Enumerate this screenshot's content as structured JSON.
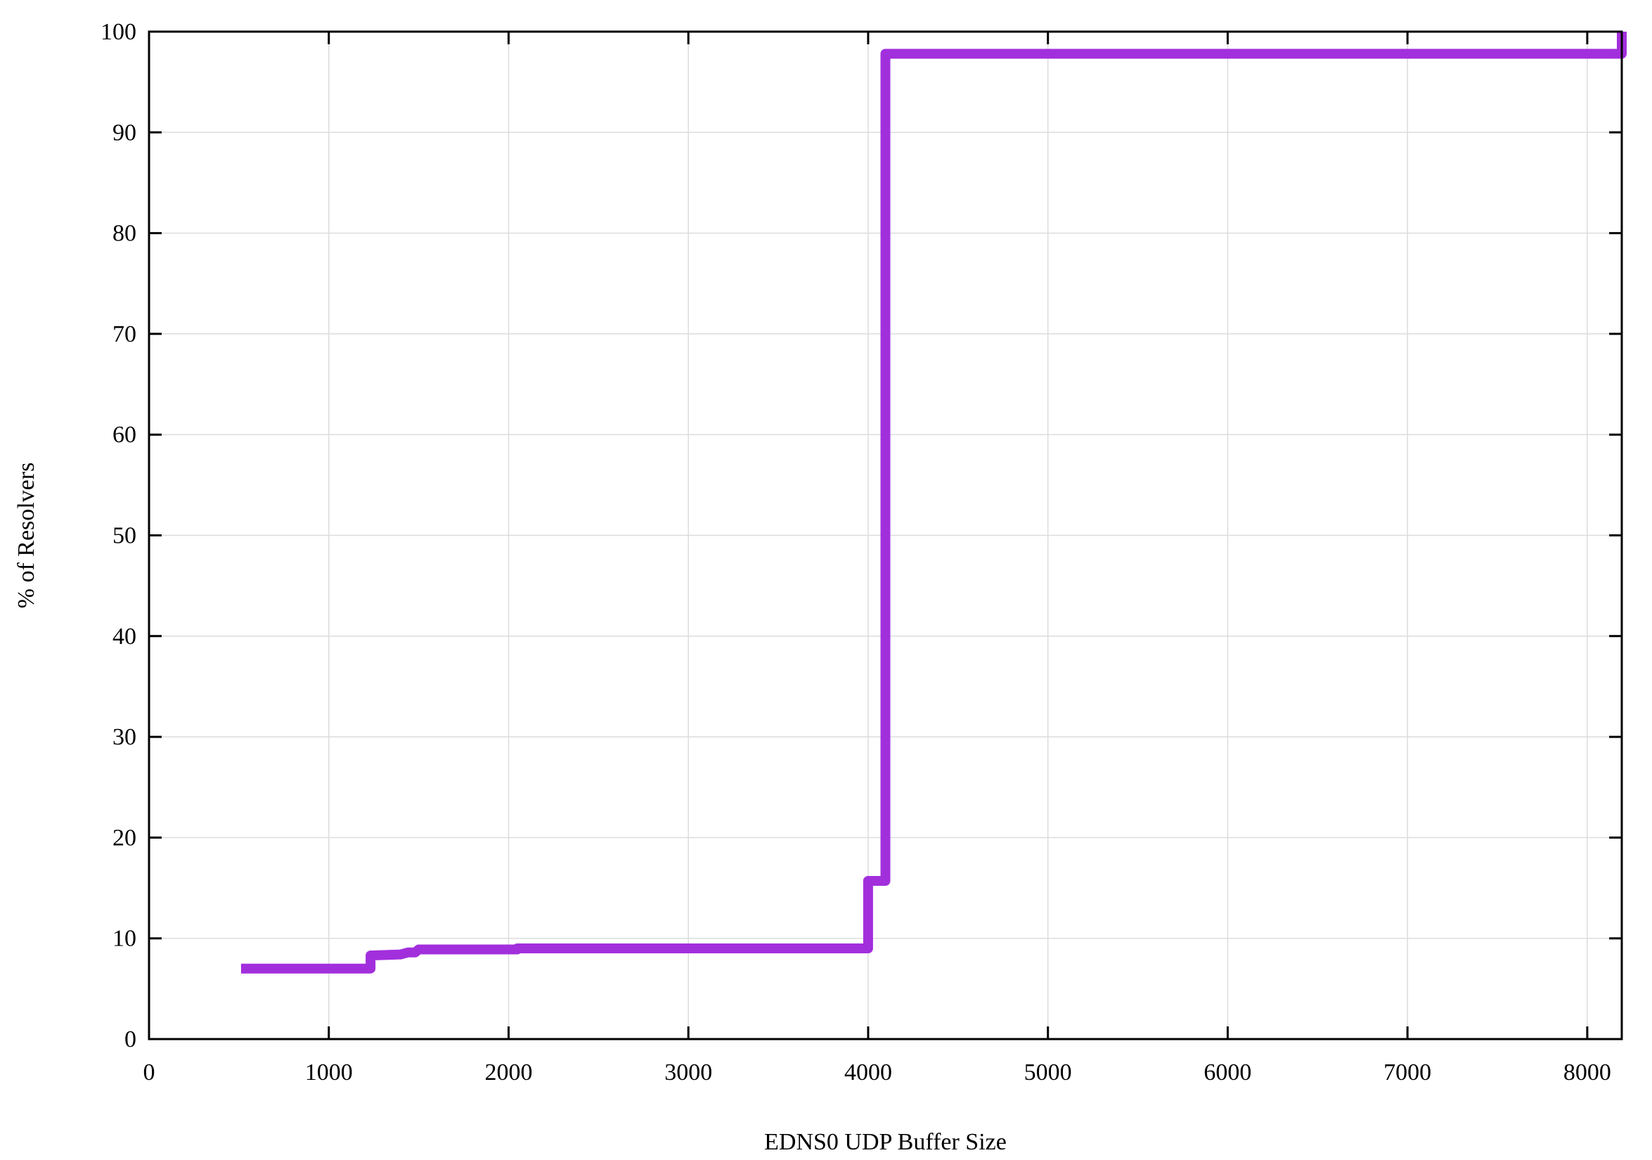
{
  "chart_data": {
    "type": "line",
    "title": "",
    "xlabel": "EDNS0 UDP Buffer Size",
    "ylabel": "% of Resolvers",
    "xlim": [
      0,
      8192
    ],
    "ylim": [
      0,
      100
    ],
    "xticks": [
      0,
      1000,
      2000,
      3000,
      4000,
      5000,
      6000,
      7000,
      8000
    ],
    "yticks": [
      0,
      10,
      20,
      30,
      40,
      50,
      60,
      70,
      80,
      90,
      100
    ],
    "grid": true,
    "step": true,
    "series": [
      {
        "color": "#a22fdc",
        "points": [
          [
            512,
            7.0
          ],
          [
            1232,
            7.0
          ],
          [
            1232,
            8.3
          ],
          [
            1400,
            8.4
          ],
          [
            1440,
            8.6
          ],
          [
            1480,
            8.6
          ],
          [
            1500,
            8.9
          ],
          [
            2048,
            8.9
          ],
          [
            2048,
            9.0
          ],
          [
            4000,
            9.0
          ],
          [
            4000,
            15.7
          ],
          [
            4096,
            15.7
          ],
          [
            4096,
            97.8
          ],
          [
            8192,
            97.8
          ],
          [
            8192,
            100
          ]
        ]
      }
    ]
  }
}
